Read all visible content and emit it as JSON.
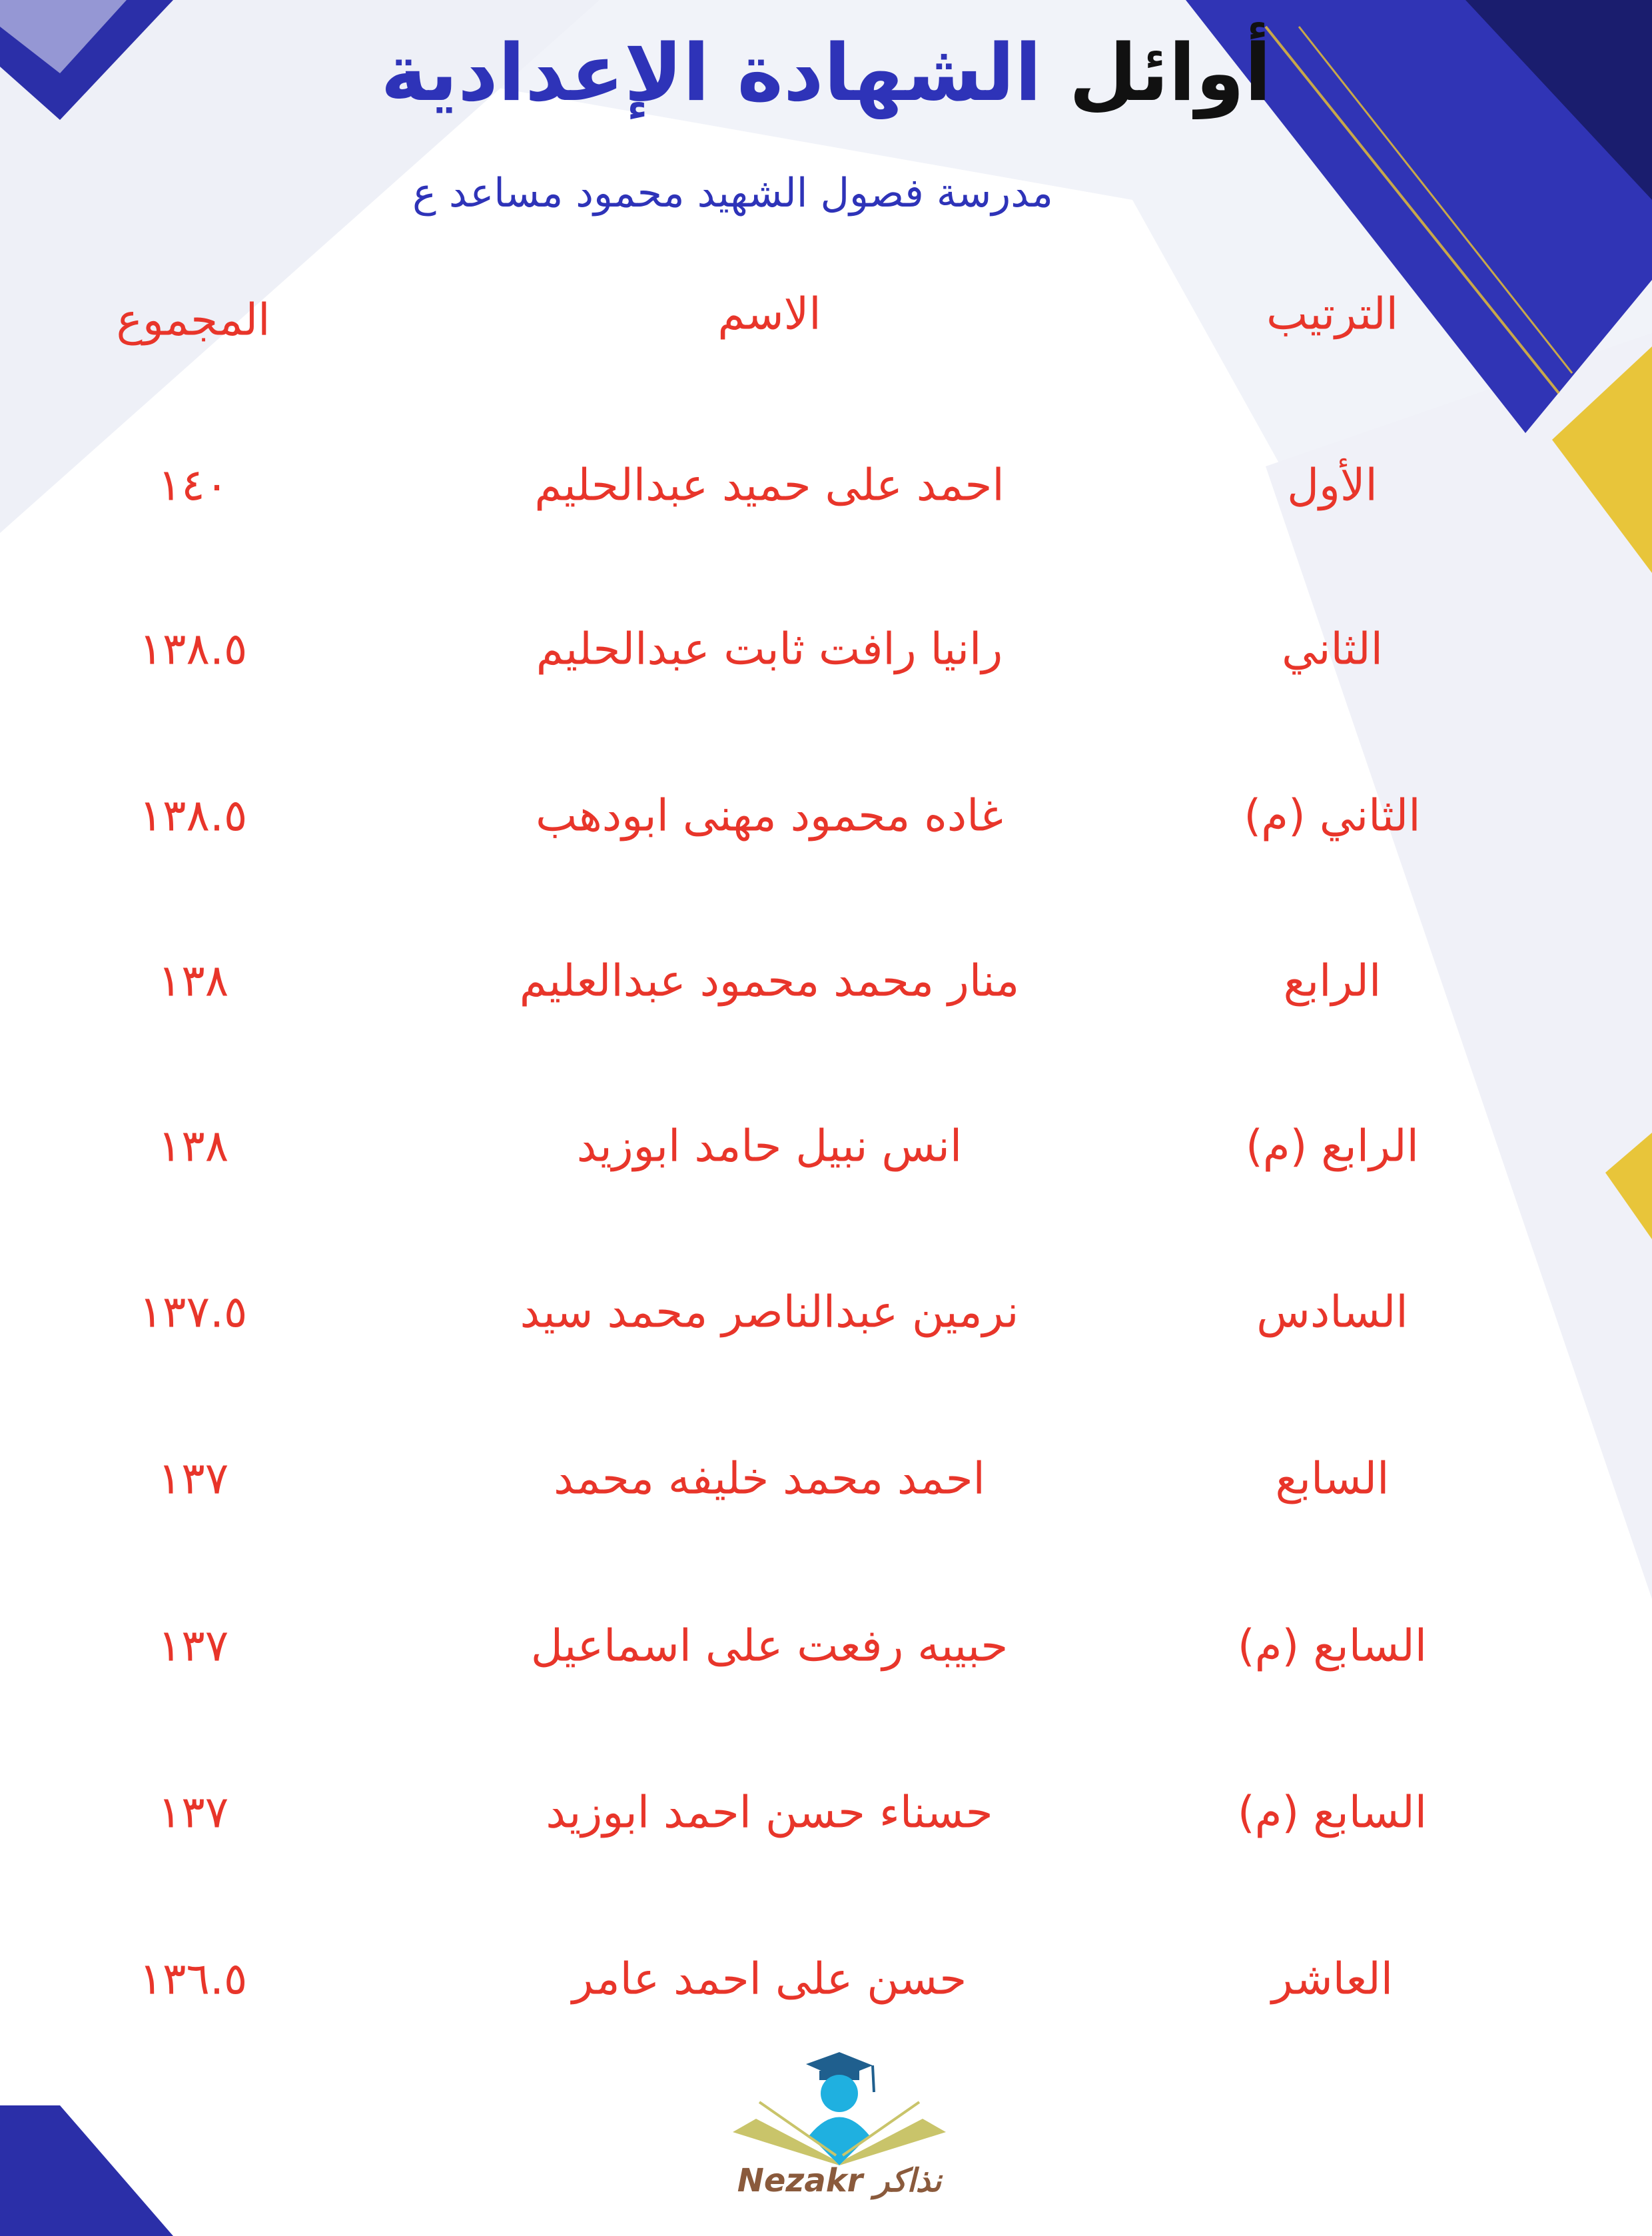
{
  "header": {
    "title_part1": "أوائل",
    "title_part2": "الشهادة الإعدادية",
    "subtitle": "مدرسة فصول الشهيد محمود مساعد ع"
  },
  "table": {
    "columns": [
      "الترتيب",
      "الاسم",
      "المجموع"
    ],
    "rows": [
      {
        "rank": "الأول",
        "name": "احمد على حميد عبدالحليم",
        "total": "١٤٠"
      },
      {
        "rank": "الثاني",
        "name": "رانيا رافت ثابت عبدالحليم",
        "total": "١٣٨.٥"
      },
      {
        "rank": "الثاني (م)",
        "name": "غاده محمود مهنى ابودهب",
        "total": "١٣٨.٥"
      },
      {
        "rank": "الرابع",
        "name": "منار محمد محمود عبدالعليم",
        "total": "١٣٨"
      },
      {
        "rank": "الرابع (م)",
        "name": "انس نبيل حامد ابوزيد",
        "total": "١٣٨"
      },
      {
        "rank": "السادس",
        "name": "نرمين عبدالناصر محمد سيد",
        "total": "١٣٧.٥"
      },
      {
        "rank": "السابع",
        "name": "احمد محمد خليفه محمد",
        "total": "١٣٧"
      },
      {
        "rank": "السابع (م)",
        "name": "حبيبه رفعت على اسماعيل",
        "total": "١٣٧"
      },
      {
        "rank": "السابع (م)",
        "name": "حسناء حسن احمد ابوزيد",
        "total": "١٣٧"
      },
      {
        "rank": "العاشر",
        "name": "حسن على احمد عامر",
        "total": "١٣٦.٥"
      }
    ]
  },
  "logo": {
    "text": "Nezakr نذاكر"
  },
  "colors": {
    "accent_blue": "#2e33b8",
    "text_red": "#e8352a",
    "gold": "#e8c53a"
  }
}
